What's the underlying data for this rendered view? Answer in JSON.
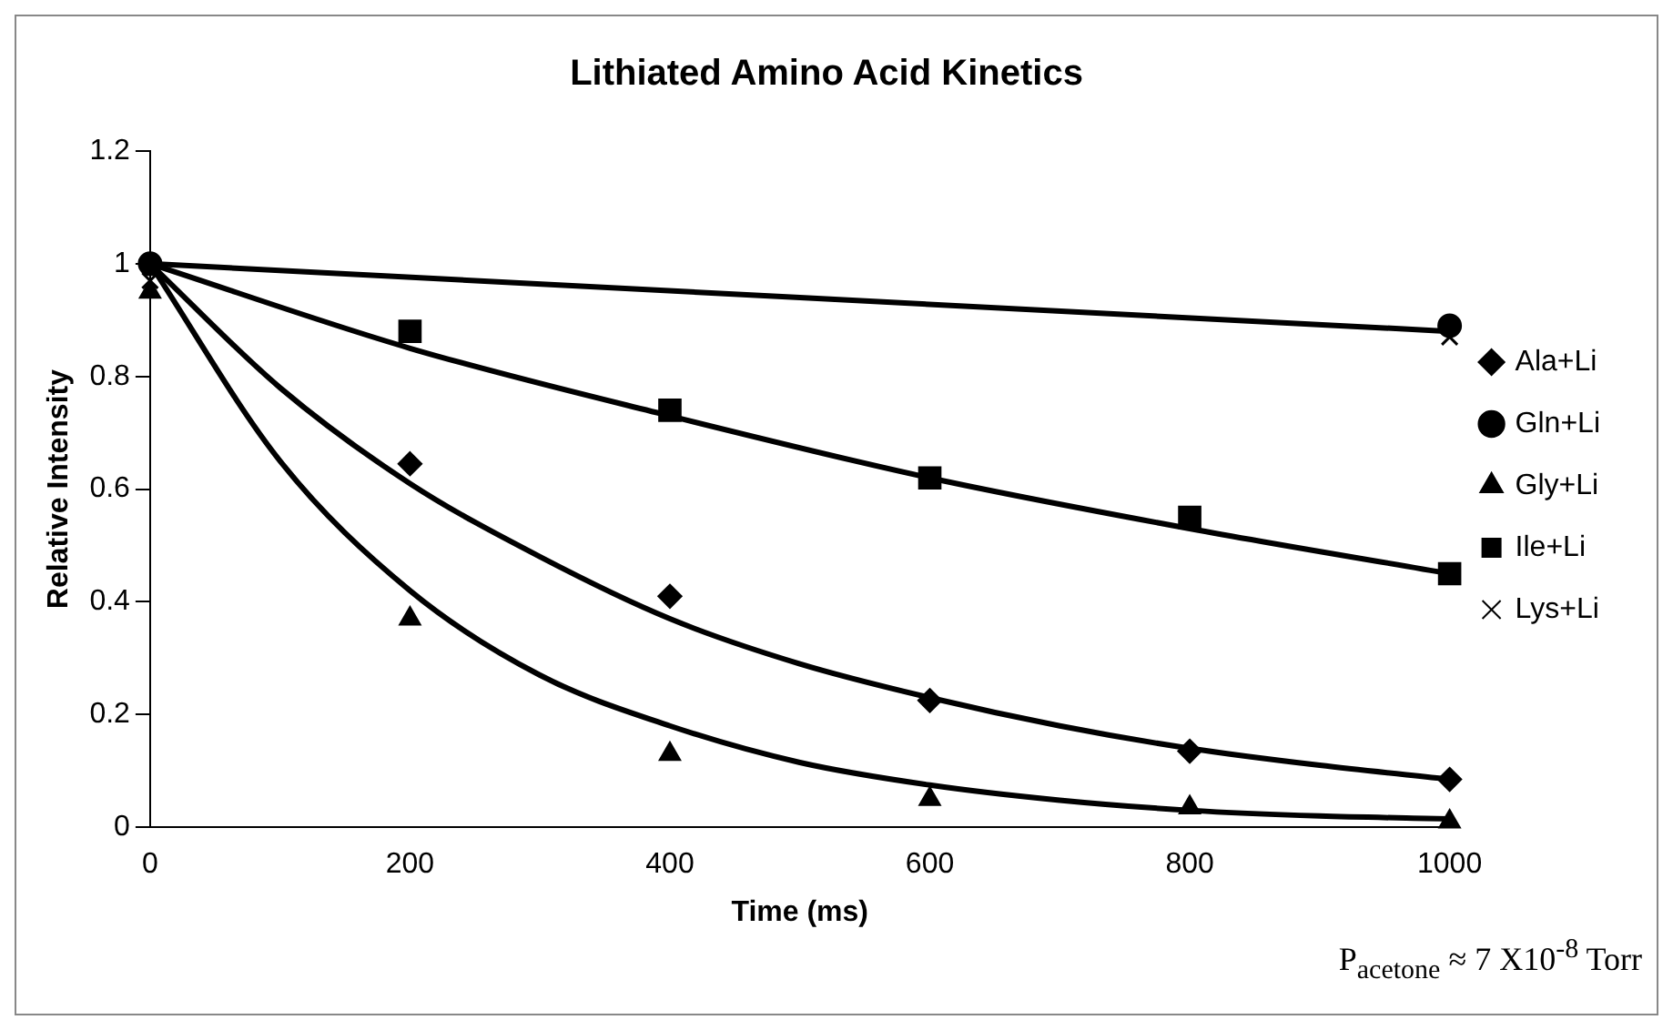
{
  "chart_data": {
    "type": "scatter",
    "title": "Lithiated Amino Acid Kinetics",
    "xlabel": "Time (ms)",
    "ylabel": "Relative Intensity",
    "annotations": [
      "P$_{acetone}$ ≈ 7 X10$^{-8}$ Torr"
    ],
    "series": [
      {
        "name": "Ala+Li",
        "color": "#000000",
        "marker": "diamond",
        "x": [
          200,
          400,
          600,
          800,
          1000
        ],
        "values": [
          0.645,
          0.41,
          0.225,
          0.135,
          0.085
        ]
      },
      {
        "name": "Gln+Li",
        "color": "#000000",
        "marker": "circle",
        "x": [
          0,
          1000
        ],
        "values": [
          1.0,
          0.89
        ]
      },
      {
        "name": "Gly+Li",
        "color": "#000000",
        "marker": "triangle",
        "x": [
          0,
          200,
          400,
          600,
          800,
          1000
        ],
        "values": [
          0.95,
          0.37,
          0.13,
          0.05,
          0.035,
          0.01
        ]
      },
      {
        "name": "Ile+Li",
        "color": "#000000",
        "marker": "square",
        "x": [
          200,
          400,
          600,
          800,
          1000
        ],
        "values": [
          0.88,
          0.74,
          0.62,
          0.55,
          0.45
        ]
      },
      {
        "name": "Lys+Li",
        "color": "#000000",
        "marker": "cross",
        "x": [
          0,
          1000
        ],
        "values": [
          0.97,
          0.87
        ]
      },
      {
        "type": "line",
        "color": "#000000",
        "marker": "none",
        "x": [
          0,
          100,
          200,
          300,
          400,
          500,
          600,
          700,
          800,
          900,
          1000
        ],
        "values": [
          1.0,
          0.78,
          0.61,
          0.48,
          0.37,
          0.29,
          0.23,
          0.18,
          0.14,
          0.11,
          0.085
        ]
      },
      {
        "type": "line",
        "color": "#000000",
        "marker": "none",
        "x": [
          0,
          100,
          200,
          300,
          400,
          500,
          600,
          700,
          800,
          900,
          1000
        ],
        "values": [
          1.0,
          0.65,
          0.42,
          0.27,
          0.18,
          0.115,
          0.075,
          0.048,
          0.03,
          0.02,
          0.015
        ]
      },
      {
        "type": "line",
        "color": "#000000",
        "marker": "none",
        "x": [
          0,
          200,
          400,
          600,
          800,
          1000
        ],
        "values": [
          1.0,
          0.85,
          0.73,
          0.62,
          0.53,
          0.45
        ]
      },
      {
        "type": "line",
        "color": "#000000",
        "marker": "none",
        "x": [
          0,
          500,
          1000
        ],
        "values": [
          1.0,
          0.94,
          0.88
        ]
      }
    ],
    "xlim": [
      0,
      1000
    ],
    "xticks": [
      0,
      200,
      400,
      600,
      800,
      1000
    ],
    "ylim": [
      0,
      1.2
    ],
    "yticks": [
      0,
      0.2,
      0.4,
      0.6,
      0.8,
      1,
      1.2
    ],
    "grid": false,
    "legend": "right"
  }
}
